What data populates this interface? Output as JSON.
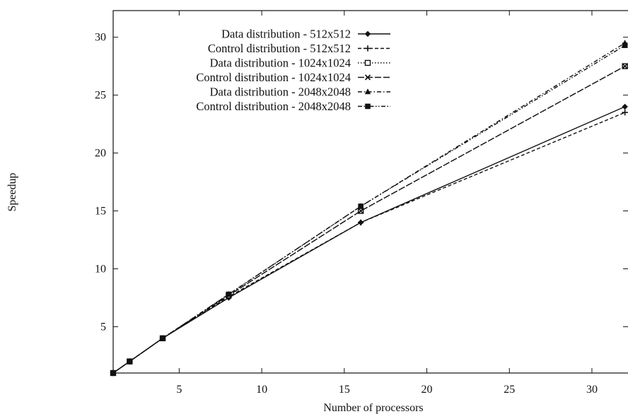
{
  "chart_data": {
    "type": "line",
    "title": "",
    "xlabel": "Number of processors",
    "ylabel": "Speedup",
    "xlim": [
      1,
      32
    ],
    "ylim": [
      1,
      32
    ],
    "xticks": [
      5,
      10,
      15,
      20,
      25,
      30
    ],
    "yticks": [
      5,
      10,
      15,
      20,
      25,
      30
    ],
    "grid": false,
    "legend_position": "top-left",
    "x": [
      1,
      2,
      4,
      8,
      16,
      32
    ],
    "series": [
      {
        "name": "Data distribution - 512x512",
        "marker": "diamond",
        "dash": "solid",
        "values": [
          1,
          2,
          4,
          7.5,
          14.0,
          24.0
        ]
      },
      {
        "name": "Control distribution - 512x512",
        "marker": "plus",
        "dash": "dashed",
        "values": [
          1,
          2,
          4,
          7.6,
          14.0,
          23.5
        ]
      },
      {
        "name": "Data distribution - 1024x1024",
        "marker": "square-open",
        "dash": "dotted",
        "values": [
          1,
          2,
          4,
          7.7,
          15.0,
          27.5
        ]
      },
      {
        "name": "Control distribution - 1024x1024",
        "marker": "cross",
        "dash": "long-dash",
        "values": [
          1,
          2,
          4,
          7.7,
          15.0,
          27.5
        ]
      },
      {
        "name": "Data distribution - 2048x2048",
        "marker": "triangle",
        "dash": "dash-dot",
        "values": [
          1,
          2,
          4,
          7.8,
          15.4,
          29.5
        ]
      },
      {
        "name": "Control distribution - 2048x2048",
        "marker": "square-filled",
        "dash": "dash-dot-dot",
        "values": [
          1,
          2,
          4,
          7.8,
          15.4,
          29.3
        ]
      }
    ]
  }
}
